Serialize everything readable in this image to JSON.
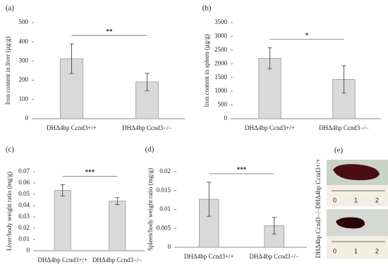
{
  "chart_data": [
    {
      "type": "bar",
      "panel": "(a)",
      "ylabel": "Iron content in liver (µg/g)",
      "categories": [
        "DHΔ4bp Ccnd3+/+",
        "DHΔ4bp Ccnd3−/−"
      ],
      "values": [
        312,
        191
      ],
      "errors": [
        77,
        45
      ],
      "color": "#d9d9d9",
      "ylim": [
        0,
        500
      ],
      "yticks": [
        0,
        100,
        200,
        300,
        400,
        500
      ],
      "significance": "**"
    },
    {
      "type": "bar",
      "panel": "(b)",
      "ylabel": "Iron content in spleen (µg/g)",
      "categories": [
        "DHΔ4bp Ccnd3+/+",
        "DHΔ4bp Ccnd3−/−"
      ],
      "values": [
        2200,
        1430
      ],
      "errors": [
        380,
        500
      ],
      "color": "#d9d9d9",
      "ylim": [
        0,
        3500
      ],
      "yticks": [
        0,
        500,
        1000,
        1500,
        2000,
        2500,
        3000,
        3500
      ],
      "significance": "*"
    },
    {
      "type": "bar",
      "panel": "(c)",
      "ylabel": "Liver/body weight ratio (mg/g)",
      "categories": [
        "DHΔ4bp Ccnd3+/+",
        "DHΔ4bp Ccnd3−/−"
      ],
      "values": [
        0.0535,
        0.044
      ],
      "errors": [
        0.005,
        0.003
      ],
      "color": "#d9d9d9",
      "ylim": [
        0,
        0.07
      ],
      "yticks": [
        0,
        0.01,
        0.02,
        0.03,
        0.04,
        0.05,
        0.06,
        0.07
      ],
      "significance": "***"
    },
    {
      "type": "bar",
      "panel": "(d)",
      "ylabel": "Spleen/body weight ratio (mg/g)",
      "categories": [
        "DHΔ4bp Ccnd3+/+",
        "DHΔ4bp Ccnd3−/−"
      ],
      "values": [
        0.0127,
        0.0057
      ],
      "errors": [
        0.0045,
        0.0022
      ],
      "color": "#d9d9d9",
      "ylim": [
        0,
        0.02
      ],
      "yticks": [
        0,
        0.005,
        0.01,
        0.015,
        0.02
      ],
      "significance": "***"
    }
  ],
  "panel_e": {
    "label": "(e)",
    "images": [
      {
        "label": "DHΔ4bp Ccnd3+/+",
        "ruler": [
          "0",
          "1",
          "2"
        ]
      },
      {
        "label": "DHΔ4bp Ccnd3−/−",
        "ruler": [
          "0",
          "1",
          "2"
        ]
      }
    ]
  }
}
